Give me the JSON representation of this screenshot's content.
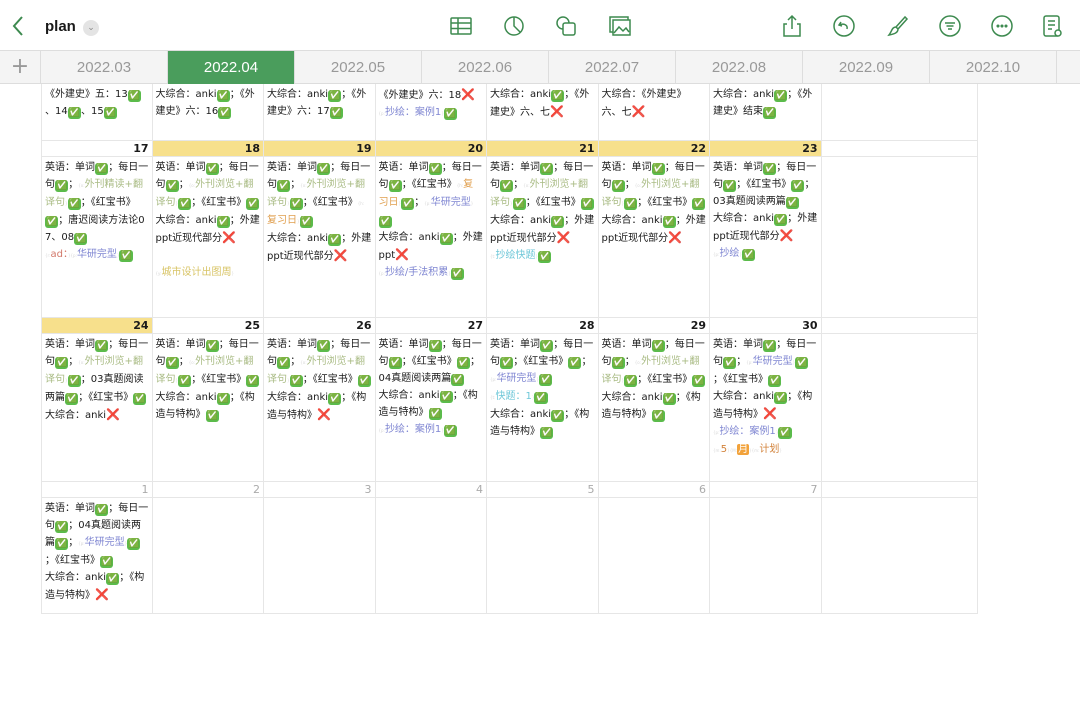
{
  "header": {
    "title": "plan",
    "icons": [
      "back-icon",
      "table-icon",
      "chart-icon",
      "shapes-icon",
      "media-icon",
      "share-icon",
      "undo-icon",
      "brush-icon",
      "format-icon",
      "more-icon",
      "document-view-icon"
    ]
  },
  "tabs": [
    {
      "label": "2022.03"
    },
    {
      "label": "2022.04",
      "active": true
    },
    {
      "label": "2022.05"
    },
    {
      "label": "2022.06"
    },
    {
      "label": "2022.07"
    },
    {
      "label": "2022.08"
    },
    {
      "label": "2022.09"
    },
    {
      "label": "2022.10"
    }
  ],
  "colors": {
    "accent": "#4a9d5c",
    "highlight": "#f7e08c",
    "check": "#5bbb4b",
    "cross": "#e0302a"
  },
  "partial_row": [
    [
      "《外建史》五：13✅、14✅、15✅"
    ],
    [
      "大综合：anki✅；《外建史》六：16✅"
    ],
    [
      "大综合：anki✅；《外建史》六：17✅"
    ],
    [
      "《外建史》六：18❌",
      "{p:抄绘：案例1}✅"
    ],
    [
      "大综合：anki✅；《外建史》六、七❌"
    ],
    [
      "大综合：《外建史》六、七❌"
    ],
    [
      "大综合：anki✅；《外建史》结束✅"
    ]
  ],
  "weeks": [
    {
      "days": [
        {
          "n": "17",
          "hl": false,
          "lines": [
            "英语：单词✅；每日一句✅；{o:外刊精读+翻译句}✅；《红宝书》✅；唐迟阅读方法论07、08✅",
            "{r:ad：}{p:华研完型}✅"
          ]
        },
        {
          "n": "18",
          "hl": true,
          "lines": [
            "英语：单词✅；每日一句✅；{o:外刊浏览+翻译句}✅；《红宝书》✅",
            "大综合：anki✅；外建ppt近现代部分❌",
            "",
            "{y:城市设计出图周}"
          ]
        },
        {
          "n": "19",
          "hl": true,
          "lines": [
            "英语：单词✅；每日一句✅；{o:外刊浏览+翻译句}✅；《红宝书》{h:复习日}✅",
            "大综合：anki✅；外建ppt近现代部分❌"
          ]
        },
        {
          "n": "20",
          "hl": true,
          "lines": [
            "英语：单词✅；每日一句✅；《红宝书》{h:复习日}✅；{p:华研完型}✅",
            "大综合：anki✅；外建ppt❌",
            "{p:抄绘/手法积累}✅"
          ]
        },
        {
          "n": "21",
          "hl": true,
          "lines": [
            "英语：单词✅；每日一句✅；{o:外刊浏览+翻译句}✅；《红宝书》✅",
            "大综合：anki✅；外建ppt近现代部分❌",
            "{t:抄绘快题}✅"
          ]
        },
        {
          "n": "22",
          "hl": true,
          "lines": [
            "英语：单词✅；每日一句✅；{o:外刊浏览+翻译句}✅；《红宝书》✅",
            "大综合：anki✅；外建ppt近现代部分❌"
          ]
        },
        {
          "n": "23",
          "hl": true,
          "lines": [
            "英语：单词✅；每日一句✅；《红宝书》✅；03真题阅读两篇✅",
            "大综合：anki✅；外建ppt近现代部分❌",
            "{p:抄绘}✅"
          ]
        }
      ]
    },
    {
      "days": [
        {
          "n": "24",
          "hl": true,
          "lines": [
            "英语：单词✅；每日一句✅；{o:外刊浏览+翻译句}✅；03真题阅读两篇✅；《红宝书》✅",
            "大综合：anki❌"
          ]
        },
        {
          "n": "25",
          "hl": false,
          "lines": [
            "英语：单词✅；每日一句✅；{o:外刊浏览+翻译句}✅；《红宝书》✅",
            "大综合：anki✅；《构造与特构》✅"
          ]
        },
        {
          "n": "26",
          "hl": false,
          "lines": [
            "英语：单词✅；每日一句✅；{o:外刊浏览+翻译句}✅；《红宝书》✅",
            "大综合：anki✅；《构造与特构》❌"
          ]
        },
        {
          "n": "27",
          "hl": false,
          "lines": [
            "英语：单词✅；每日一句✅；《红宝书》✅；04真题阅读两篇✅",
            "大综合：anki✅；《构造与特构》✅",
            "{p:抄绘：案例1}✅"
          ]
        },
        {
          "n": "28",
          "hl": false,
          "lines": [
            "英语：单词✅；每日一句✅；《红宝书》✅；{p:华研完型}✅",
            "{t:快题：1}✅",
            "大综合：anki✅；《构造与特构》✅"
          ]
        },
        {
          "n": "29",
          "hl": false,
          "lines": [
            "英语：单词✅；每日一句✅；{o:外刊浏览+翻译句}✅；《红宝书》✅",
            "大综合：anki✅；《构造与特构》✅"
          ]
        },
        {
          "n": "30",
          "hl": false,
          "lines": [
            "英语：单词✅；每日一句✅；{p:华研完型}✅；《红宝书》✅",
            "大综合：anki✅；《构造与特构》❌",
            "{p:抄绘：案例1}✅",
            "{m:5}{M:月}{m:计划}"
          ]
        }
      ]
    },
    {
      "days": [
        {
          "n": "1",
          "other": true,
          "lines": [
            "英语：单词✅；每日一句✅；04真题阅读两篇✅；{p:华研完型}✅；《红宝书》✅",
            "大综合：anki✅；《构造与特构》❌"
          ]
        },
        {
          "n": "2",
          "other": true,
          "lines": []
        },
        {
          "n": "3",
          "other": true,
          "lines": []
        },
        {
          "n": "4",
          "other": true,
          "lines": []
        },
        {
          "n": "5",
          "other": true,
          "lines": []
        },
        {
          "n": "6",
          "other": true,
          "lines": []
        },
        {
          "n": "7",
          "other": true,
          "lines": []
        }
      ]
    }
  ]
}
